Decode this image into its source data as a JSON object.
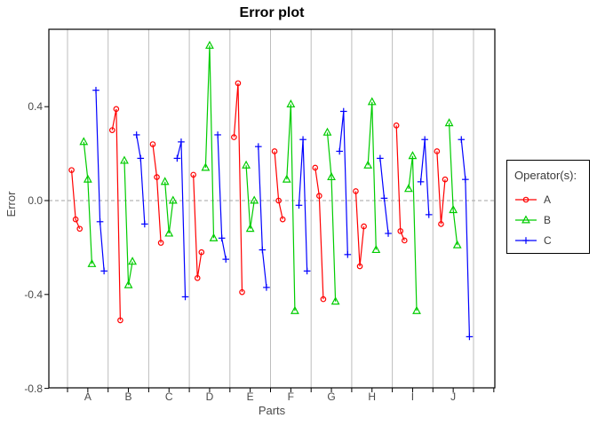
{
  "figure": {
    "title": "Error plot",
    "xlabel": "Parts",
    "ylabel": "Error"
  },
  "chart_data": {
    "type": "line",
    "title": "Error plot",
    "xlabel": "Parts",
    "ylabel": "Error",
    "categories": [
      "A",
      "B",
      "C",
      "D",
      "E",
      "F",
      "G",
      "H",
      "I",
      "J"
    ],
    "points_per_operator_per_part": 3,
    "ytick_labels": [
      "0.4",
      "0.0",
      "-0.4",
      "-0.8"
    ],
    "ytick_values": [
      0.4,
      0.0,
      -0.4,
      -0.8
    ],
    "ylim": [
      -0.8,
      0.73
    ],
    "grid": "vertical-part-separators",
    "zero_line": "dashed-horizontal-at-0",
    "legend": {
      "title": "Operator(s):",
      "position": "right"
    },
    "series": [
      {
        "name": "A",
        "color": "#ff0000",
        "marker": "circle",
        "values": [
          [
            0.13,
            -0.08,
            -0.12
          ],
          [
            0.3,
            0.39,
            -0.51
          ],
          [
            0.24,
            0.1,
            -0.18
          ],
          [
            0.11,
            -0.33,
            -0.22
          ],
          [
            0.27,
            0.5,
            -0.39
          ],
          [
            0.21,
            0.0,
            -0.08
          ],
          [
            0.14,
            0.02,
            -0.42
          ],
          [
            0.04,
            -0.28,
            -0.11
          ],
          [
            0.32,
            -0.13,
            -0.17
          ],
          [
            0.21,
            -0.1,
            0.09
          ]
        ]
      },
      {
        "name": "B",
        "color": "#00cc00",
        "marker": "triangle",
        "values": [
          [
            0.25,
            0.09,
            -0.27
          ],
          [
            0.17,
            -0.36,
            -0.26
          ],
          [
            0.08,
            -0.14,
            0.0
          ],
          [
            0.14,
            0.66,
            -0.16
          ],
          [
            0.15,
            -0.12,
            0.0
          ],
          [
            0.09,
            0.41,
            -0.47
          ],
          [
            0.29,
            0.1,
            -0.43
          ],
          [
            0.15,
            0.42,
            -0.21
          ],
          [
            0.05,
            0.19,
            -0.47
          ],
          [
            0.33,
            -0.04,
            -0.19
          ]
        ]
      },
      {
        "name": "C",
        "color": "#0000ff",
        "marker": "plus",
        "values": [
          [
            0.47,
            -0.09,
            -0.3
          ],
          [
            0.28,
            0.18,
            -0.1
          ],
          [
            0.18,
            0.25,
            -0.41
          ],
          [
            0.28,
            -0.16,
            -0.25
          ],
          [
            0.23,
            -0.21,
            -0.37
          ],
          [
            -0.02,
            0.26,
            -0.3
          ],
          [
            0.21,
            0.38,
            -0.23
          ],
          [
            0.18,
            0.01,
            -0.14
          ],
          [
            0.08,
            0.26,
            -0.06
          ],
          [
            0.26,
            0.09,
            -0.58
          ]
        ]
      }
    ],
    "colors": {
      "grid": "#bdbdbd",
      "zero_line": "#a6a6a6",
      "axis": "#000000",
      "text": "#4a4a4a",
      "title": "#000000",
      "background": "#ffffff"
    }
  }
}
